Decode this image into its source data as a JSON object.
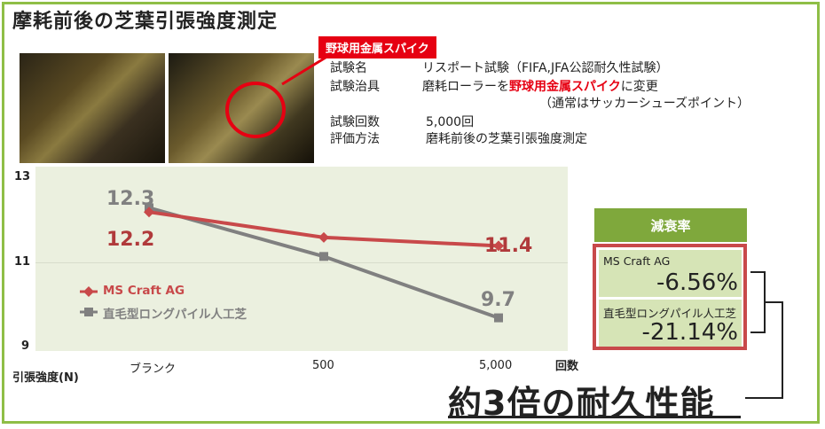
{
  "page": {
    "title": "摩耗前後の芝葉引張強度測定",
    "callout": "野球用金属スパイク"
  },
  "info": [
    {
      "label": "試験名",
      "value": "リスポート試験（FIFA,JFA公認耐久性試験）"
    },
    {
      "label": "試験治具",
      "pre": "磨耗ローラーを",
      "highlight": "野球用金属スパイク",
      "post": "に変更"
    },
    {
      "label": "",
      "value": "（通常はサッカーシューズポイント）"
    },
    {
      "label": "試験回数",
      "value": "5,000回"
    },
    {
      "label": "評価方法",
      "value": "磨耗前後の芝葉引張強度測定"
    }
  ],
  "chart_data": {
    "type": "line",
    "categories": [
      "ブランク",
      "500",
      "5,000"
    ],
    "ylim": [
      9,
      13
    ],
    "yticks": [
      "13",
      "11",
      "9"
    ],
    "ylabel": "引張強度(N)",
    "xlabel": "回数",
    "legend_position": "left",
    "series": [
      {
        "name": "MS Craft AG",
        "color": "#c8494a",
        "marker": "diamond",
        "values": [
          12.2,
          11.6,
          11.4
        ],
        "labels": [
          "12.2",
          "",
          "11.4"
        ]
      },
      {
        "name": "直毛型ロングパイル人工芝",
        "color": "#808080",
        "marker": "square",
        "values": [
          12.3,
          11.15,
          9.7
        ],
        "labels": [
          "12.3",
          "",
          "9.7"
        ]
      }
    ]
  },
  "decay": {
    "header": "減衰率",
    "rows": [
      {
        "name": "MS Craft AG",
        "value": "-6.56%"
      },
      {
        "name": "直毛型ロングパイル人工芝",
        "value": "-21.14%"
      }
    ]
  },
  "footer": "約3倍の耐久性能"
}
